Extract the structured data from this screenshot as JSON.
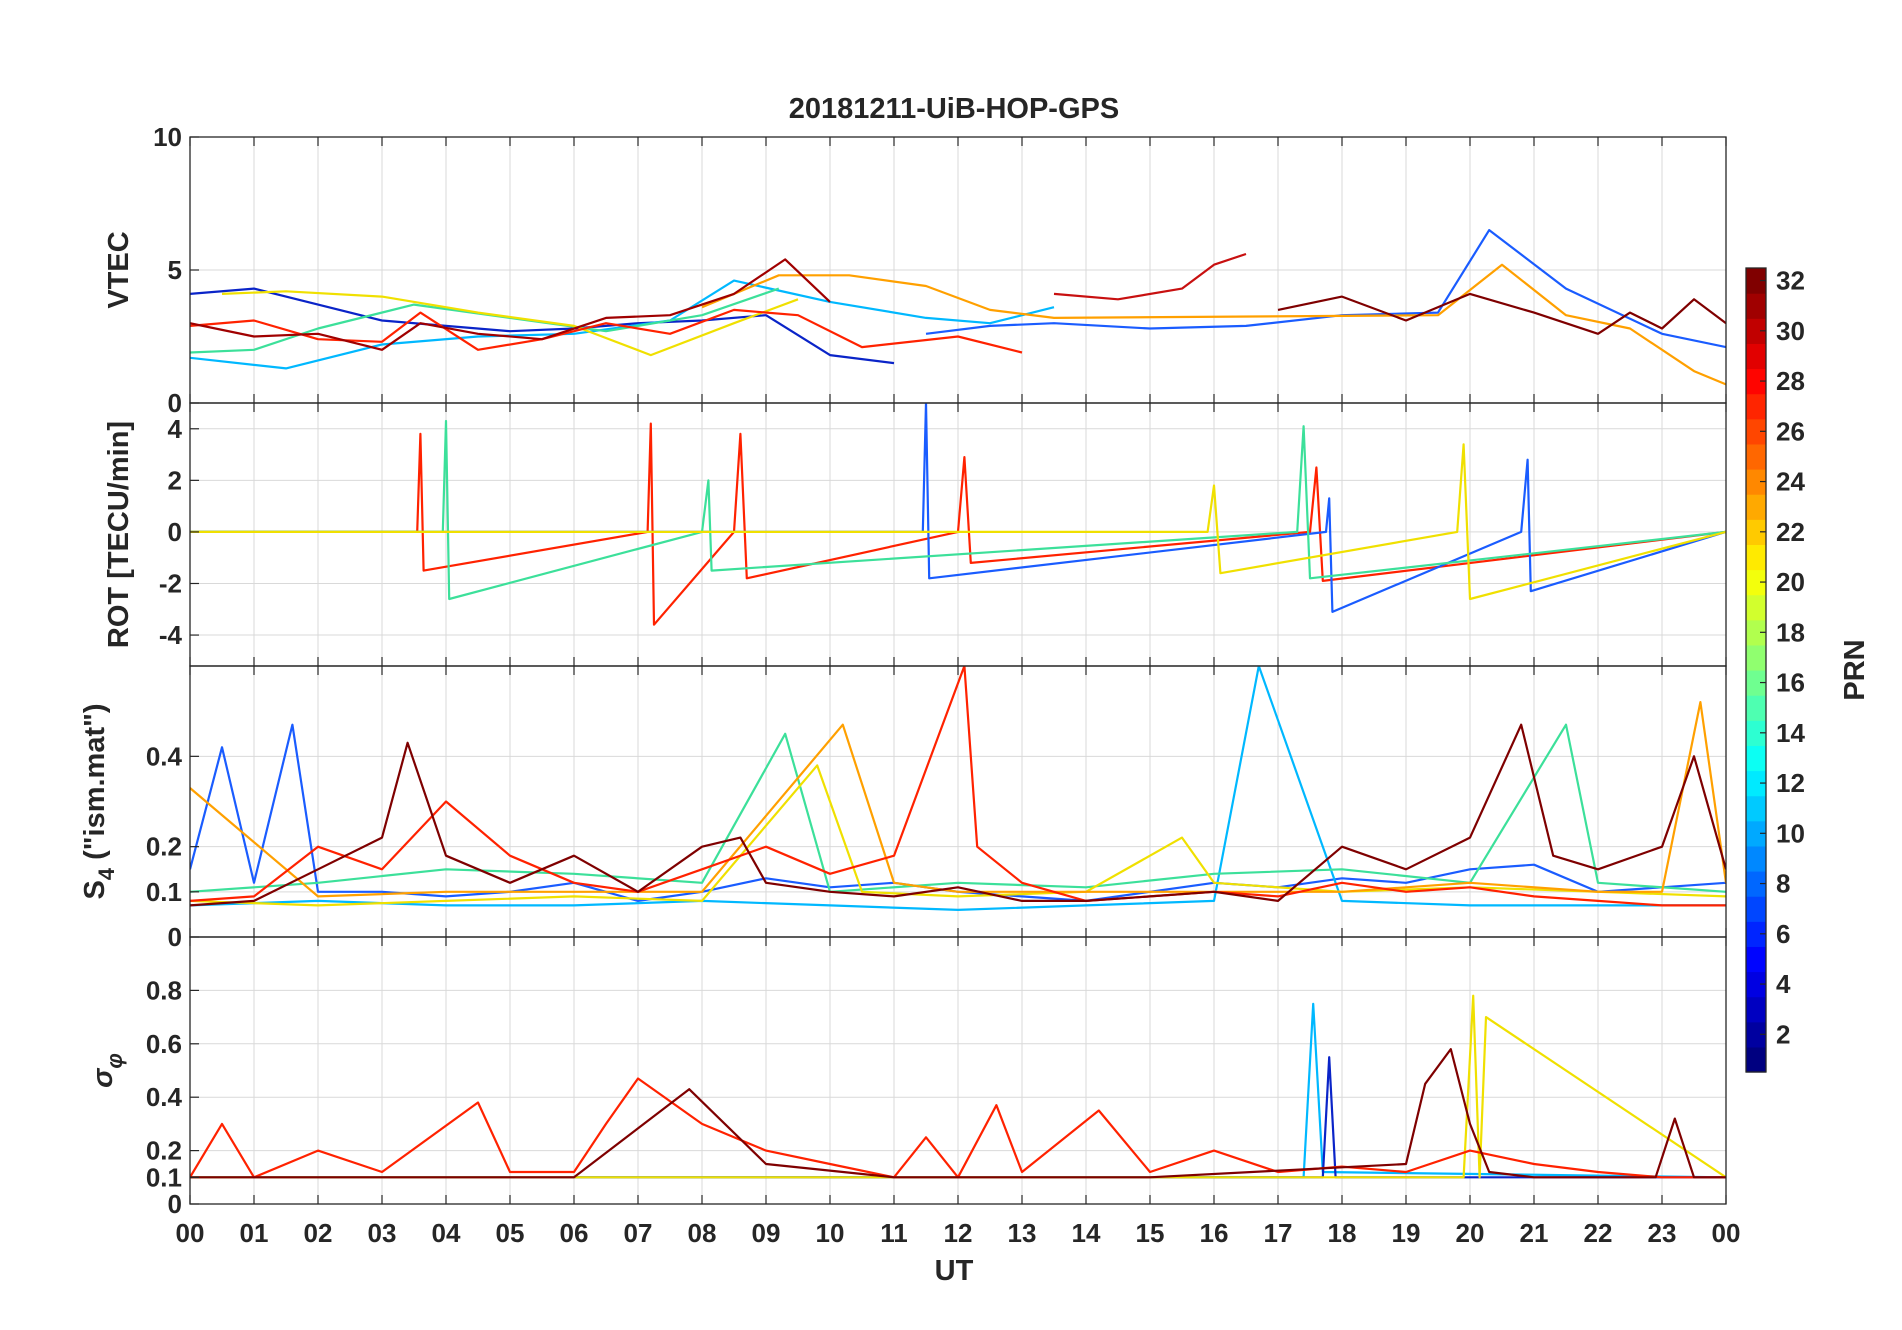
{
  "figure": {
    "title": "20181211-UiB-HOP-GPS",
    "xlabel": "UT",
    "x_ticks": [
      "00",
      "01",
      "02",
      "03",
      "04",
      "05",
      "06",
      "07",
      "08",
      "09",
      "10",
      "11",
      "12",
      "13",
      "14",
      "15",
      "16",
      "17",
      "18",
      "19",
      "20",
      "21",
      "22",
      "23",
      "00"
    ]
  },
  "colorbar": {
    "label": "PRN",
    "range": [
      1,
      32
    ],
    "ticks": [
      "2",
      "4",
      "6",
      "8",
      "10",
      "12",
      "14",
      "16",
      "18",
      "20",
      "22",
      "24",
      "26",
      "28",
      "30",
      "32"
    ],
    "colormap": "jet"
  },
  "chart_data": [
    {
      "type": "line",
      "panel": "VTEC",
      "ylabel": "VTEC",
      "x_unit": "UT hours",
      "xlim": [
        0,
        24
      ],
      "ylim": [
        0,
        10
      ],
      "y_ticks": [
        "0",
        "5",
        "10"
      ],
      "series": [
        {
          "color": "#0a24c8",
          "x": [
            0,
            1,
            2,
            3,
            4,
            5,
            6,
            7,
            8,
            9,
            10,
            11
          ],
          "values": [
            4.1,
            4.3,
            3.7,
            3.1,
            2.9,
            2.7,
            2.8,
            3.0,
            3.1,
            3.3,
            1.8,
            1.5
          ]
        },
        {
          "color": "#1a5cff",
          "x": [
            11.5,
            12.5,
            13.5,
            15,
            16.5,
            18,
            19.5,
            20.3,
            21.5,
            23,
            24
          ],
          "values": [
            2.6,
            2.9,
            3.0,
            2.8,
            2.9,
            3.3,
            3.4,
            6.5,
            4.3,
            2.6,
            2.1
          ]
        },
        {
          "color": "#00b8ff",
          "x": [
            0,
            1.5,
            3,
            4.5,
            6,
            7.5,
            8.5,
            10,
            11.5,
            12.5,
            13.5
          ],
          "values": [
            1.7,
            1.3,
            2.2,
            2.5,
            2.6,
            3.1,
            4.6,
            3.8,
            3.2,
            3.0,
            3.6
          ]
        },
        {
          "color": "#3ce09a",
          "x": [
            0,
            1,
            2,
            3.5,
            5,
            6.5,
            8,
            9.2
          ],
          "values": [
            1.9,
            2.0,
            2.8,
            3.7,
            3.2,
            2.7,
            3.3,
            4.3
          ]
        },
        {
          "color": "#f0e000",
          "x": [
            0.5,
            1.5,
            3,
            4.5,
            6,
            7.2,
            8.5,
            9.5
          ],
          "values": [
            4.1,
            4.2,
            4.0,
            3.4,
            2.9,
            1.8,
            3.0,
            3.9
          ]
        },
        {
          "color": "#ffa000",
          "x": [
            8,
            9.2,
            10.3,
            11.5,
            12.5,
            13.5,
            19.5,
            20.5,
            21.5,
            22.5,
            23.5,
            24
          ],
          "values": [
            3.6,
            4.8,
            4.8,
            4.4,
            3.5,
            3.2,
            3.3,
            5.2,
            3.3,
            2.8,
            1.2,
            0.7
          ]
        },
        {
          "color": "#ff2200",
          "x": [
            0,
            1,
            2,
            3,
            3.6,
            4.5,
            5.5,
            6.5,
            7.5,
            8.5,
            9.5,
            10.5,
            12,
            13
          ],
          "values": [
            2.9,
            3.1,
            2.4,
            2.3,
            3.4,
            2.0,
            2.4,
            3.0,
            2.6,
            3.5,
            3.3,
            2.1,
            2.5,
            1.9
          ]
        },
        {
          "color": "#c81010",
          "x": [
            13.5,
            14.5,
            15.5,
            16,
            16.5
          ],
          "values": [
            4.1,
            3.9,
            4.3,
            5.2,
            5.6
          ]
        },
        {
          "color": "#a00000",
          "x": [
            0,
            1,
            2,
            3,
            3.6,
            4.5,
            5.5,
            6.5,
            7.5,
            8.5,
            9.3,
            10
          ],
          "values": [
            3.0,
            2.5,
            2.6,
            2.0,
            3.0,
            2.6,
            2.4,
            3.2,
            3.3,
            4.1,
            5.4,
            3.8
          ]
        },
        {
          "color": "#7f0000",
          "x": [
            17,
            18,
            19,
            20,
            21,
            22,
            22.5,
            23,
            23.5,
            24
          ],
          "values": [
            3.5,
            4.0,
            3.1,
            4.1,
            3.4,
            2.6,
            3.4,
            2.8,
            3.9,
            3.0
          ]
        }
      ]
    },
    {
      "type": "line",
      "panel": "ROT",
      "ylabel": "ROT [TECU/min]",
      "x_unit": "UT hours",
      "xlim": [
        0,
        24
      ],
      "ylim": [
        -5.2,
        5
      ],
      "y_ticks": [
        "-4",
        "-2",
        "0",
        "2",
        "4"
      ],
      "series": [
        {
          "color": "#ff2200",
          "x": [
            0,
            3.55,
            3.6,
            3.65,
            7.15,
            7.2,
            7.25,
            8.5,
            8.6,
            8.7,
            12,
            12.1,
            12.2,
            17.5,
            17.6,
            17.7,
            24
          ],
          "values": [
            0,
            0,
            3.8,
            -1.5,
            0,
            4.2,
            -3.6,
            0,
            3.8,
            -1.8,
            0,
            2.9,
            -1.2,
            0,
            2.5,
            -1.9,
            0
          ]
        },
        {
          "color": "#1a5cff",
          "x": [
            0,
            11.45,
            11.5,
            11.55,
            17.75,
            17.8,
            17.85,
            20.8,
            20.9,
            20.95,
            24
          ],
          "values": [
            0,
            0,
            5.0,
            -1.8,
            0,
            1.3,
            -3.1,
            0,
            2.8,
            -2.3,
            0
          ]
        },
        {
          "color": "#3ce09a",
          "x": [
            0,
            3.95,
            4.0,
            4.05,
            8.0,
            8.1,
            8.15,
            17.3,
            17.4,
            17.5,
            24
          ],
          "values": [
            0,
            0,
            4.3,
            -2.6,
            0,
            2.0,
            -1.5,
            0,
            4.1,
            -1.8,
            0
          ]
        },
        {
          "color": "#f0e000",
          "x": [
            0,
            15.9,
            16.0,
            16.1,
            19.8,
            19.9,
            20.0,
            24
          ],
          "values": [
            0,
            0,
            1.8,
            -1.6,
            0,
            3.4,
            -2.6,
            0
          ]
        }
      ]
    },
    {
      "type": "line",
      "panel": "S4",
      "ylabel": "S4 (\"ism.mat\")",
      "x_unit": "UT hours",
      "xlim": [
        0,
        24
      ],
      "ylim": [
        0,
        0.6
      ],
      "y_ticks": [
        "0",
        "0.1",
        "0.2",
        "0.4"
      ],
      "series": [
        {
          "color": "#1a5cff",
          "x": [
            0,
            0.5,
            1,
            1.6,
            2,
            3,
            4,
            5,
            6,
            7,
            8,
            9,
            10,
            11,
            12,
            13,
            14,
            15,
            16,
            17,
            18,
            19,
            20,
            21,
            22,
            23,
            24
          ],
          "values": [
            0.15,
            0.42,
            0.12,
            0.47,
            0.1,
            0.1,
            0.09,
            0.1,
            0.12,
            0.08,
            0.1,
            0.13,
            0.11,
            0.12,
            0.1,
            0.09,
            0.08,
            0.1,
            0.12,
            0.11,
            0.13,
            0.12,
            0.15,
            0.16,
            0.1,
            0.11,
            0.12
          ]
        },
        {
          "color": "#00b8ff",
          "x": [
            0,
            2,
            4,
            6,
            8,
            10,
            12,
            14,
            16,
            16.7,
            18,
            20,
            22,
            24
          ],
          "values": [
            0.07,
            0.08,
            0.07,
            0.07,
            0.08,
            0.07,
            0.06,
            0.07,
            0.08,
            0.6,
            0.08,
            0.07,
            0.07,
            0.07
          ]
        },
        {
          "color": "#3ce09a",
          "x": [
            0,
            2,
            4,
            6,
            8,
            9.3,
            10,
            12,
            14,
            16,
            18,
            20,
            21.5,
            22,
            24
          ],
          "values": [
            0.1,
            0.12,
            0.15,
            0.14,
            0.12,
            0.45,
            0.1,
            0.12,
            0.11,
            0.14,
            0.15,
            0.12,
            0.47,
            0.12,
            0.1
          ]
        },
        {
          "color": "#f0e000",
          "x": [
            0,
            2,
            4,
            6,
            8,
            9.8,
            10.5,
            12,
            14,
            15.5,
            16,
            18,
            20,
            22,
            24
          ],
          "values": [
            0.08,
            0.07,
            0.08,
            0.09,
            0.08,
            0.38,
            0.1,
            0.09,
            0.1,
            0.22,
            0.12,
            0.1,
            0.11,
            0.1,
            0.09
          ]
        },
        {
          "color": "#ffa000",
          "x": [
            0,
            2,
            4,
            6,
            8,
            10.2,
            11,
            12,
            14,
            16,
            18,
            20,
            22,
            23,
            23.6,
            24
          ],
          "values": [
            0.33,
            0.09,
            0.1,
            0.1,
            0.1,
            0.47,
            0.12,
            0.1,
            0.1,
            0.1,
            0.1,
            0.12,
            0.1,
            0.1,
            0.52,
            0.12
          ]
        },
        {
          "color": "#ff2200",
          "x": [
            0,
            1,
            2,
            3,
            4,
            5,
            6,
            7,
            8,
            9,
            10,
            11,
            12.1,
            12.3,
            13,
            14,
            15,
            16,
            17,
            18,
            19,
            20,
            21,
            22,
            23,
            24
          ],
          "values": [
            0.08,
            0.09,
            0.2,
            0.15,
            0.3,
            0.18,
            0.12,
            0.1,
            0.15,
            0.2,
            0.14,
            0.18,
            0.6,
            0.2,
            0.12,
            0.08,
            0.09,
            0.1,
            0.09,
            0.12,
            0.1,
            0.11,
            0.09,
            0.08,
            0.07,
            0.07
          ]
        },
        {
          "color": "#7f0000",
          "x": [
            0,
            1,
            2,
            3,
            3.4,
            4,
            5,
            6,
            7,
            8,
            8.6,
            9,
            10,
            11,
            12,
            13,
            14,
            15,
            16,
            17,
            18,
            19,
            20,
            20.8,
            21.3,
            22,
            23,
            23.5,
            24
          ],
          "values": [
            0.07,
            0.08,
            0.15,
            0.22,
            0.43,
            0.18,
            0.12,
            0.18,
            0.1,
            0.2,
            0.22,
            0.12,
            0.1,
            0.09,
            0.11,
            0.08,
            0.08,
            0.09,
            0.1,
            0.08,
            0.2,
            0.15,
            0.22,
            0.47,
            0.18,
            0.15,
            0.2,
            0.4,
            0.15
          ]
        }
      ]
    },
    {
      "type": "line",
      "panel": "sigma_phi",
      "ylabel": "σ φ",
      "x_unit": "UT hours",
      "xlim": [
        0,
        24
      ],
      "ylim": [
        0,
        1
      ],
      "y_ticks": [
        "0",
        "0.1",
        "0.2",
        "0.4",
        "0.6",
        "0.8"
      ],
      "series": [
        {
          "color": "#00b8ff",
          "x": [
            0,
            17.4,
            17.55,
            17.7,
            24
          ],
          "values": [
            0.1,
            0.1,
            0.75,
            0.12,
            0.1
          ]
        },
        {
          "color": "#0a24c8",
          "x": [
            0,
            17.7,
            17.8,
            17.9,
            24
          ],
          "values": [
            0.1,
            0.1,
            0.55,
            0.1,
            0.1
          ]
        },
        {
          "color": "#f0e000",
          "x": [
            0,
            19.9,
            20.05,
            20.15,
            20.25,
            24
          ],
          "values": [
            0.1,
            0.1,
            0.78,
            0.1,
            0.7,
            0.1
          ]
        },
        {
          "color": "#ff2200",
          "x": [
            0,
            0.5,
            1,
            2,
            3,
            4.5,
            5,
            6,
            6.5,
            7,
            8,
            9,
            10,
            11,
            11.5,
            12,
            12.6,
            13,
            14.2,
            15,
            16,
            17,
            18,
            19,
            20,
            21,
            22,
            23,
            24
          ],
          "values": [
            0.1,
            0.3,
            0.1,
            0.2,
            0.12,
            0.38,
            0.12,
            0.12,
            0.3,
            0.47,
            0.3,
            0.2,
            0.15,
            0.1,
            0.25,
            0.1,
            0.37,
            0.12,
            0.35,
            0.12,
            0.2,
            0.12,
            0.14,
            0.12,
            0.2,
            0.15,
            0.12,
            0.1,
            0.1
          ]
        },
        {
          "color": "#7f0000",
          "x": [
            0,
            6,
            7.8,
            9,
            11,
            15,
            19,
            19.3,
            19.7,
            20,
            20.3,
            21,
            22,
            22.9,
            23.2,
            23.5,
            24
          ],
          "values": [
            0.1,
            0.1,
            0.43,
            0.15,
            0.1,
            0.1,
            0.15,
            0.45,
            0.58,
            0.3,
            0.12,
            0.1,
            0.1,
            0.1,
            0.32,
            0.1,
            0.1
          ]
        }
      ]
    }
  ]
}
